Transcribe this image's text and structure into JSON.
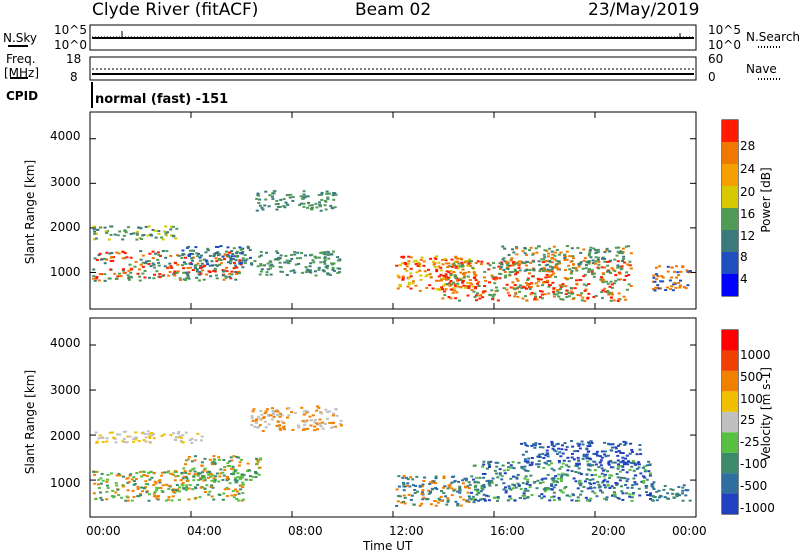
{
  "header": {
    "station": "Clyde River (fitACF)",
    "beam": "Beam 02",
    "date": "23/May/2019"
  },
  "strip": {
    "nsky_label": "N.Sky",
    "nsearch_label": "N.Search",
    "left_ticks": [
      "10^5",
      "10^0"
    ],
    "right_ticks": [
      "10^5",
      "10^0"
    ],
    "freq_label_1": "Freq.",
    "freq_label_2": "[MHz]",
    "freq_ticks": [
      "18",
      "8"
    ],
    "nave_label": "Nave",
    "nave_ticks": [
      "60",
      "0"
    ],
    "cpid_label": "CPID",
    "cpid_value": "normal (fast) -151"
  },
  "chart_data": [
    {
      "type": "heatmap",
      "ylabel": "Slant Range [km]",
      "xlabel": "",
      "x_ticks": [
        "00:00",
        "04:00",
        "08:00",
        "12:00",
        "16:00",
        "20:00",
        "00:00"
      ],
      "y_ticks": [
        1000,
        2000,
        3000,
        4000
      ],
      "xlim": [
        0,
        24
      ],
      "ylim": [
        180,
        4600
      ],
      "colorbar": {
        "label": "Power [dB]",
        "ticks": [
          "28",
          "24",
          "20",
          "16",
          "12",
          "8",
          "4"
        ],
        "colors": [
          "#0000ff",
          "#1f4fbf",
          "#3a7a7a",
          "#4f9a55",
          "#d8c800",
          "#f3a000",
          "#f07800",
          "#ff1a00"
        ]
      }
    },
    {
      "type": "heatmap",
      "ylabel": "Slant Range [km]",
      "xlabel": "Time UT",
      "x_ticks": [
        "00:00",
        "04:00",
        "08:00",
        "12:00",
        "16:00",
        "20:00",
        "00:00"
      ],
      "y_ticks": [
        1000,
        2000,
        3000,
        4000
      ],
      "xlim": [
        0,
        24
      ],
      "ylim": [
        180,
        4600
      ],
      "colorbar": {
        "label": "Velocity [m s-1]",
        "ticks": [
          "1000",
          "500",
          "100",
          "25",
          "-25",
          "-100",
          "-500",
          "-1000"
        ],
        "colors": [
          "#2040c0",
          "#2f6fa0",
          "#3d8a6a",
          "#58c040",
          "#c0c0c0",
          "#f0c000",
          "#f08000",
          "#f04000",
          "#ff0000"
        ]
      }
    }
  ]
}
